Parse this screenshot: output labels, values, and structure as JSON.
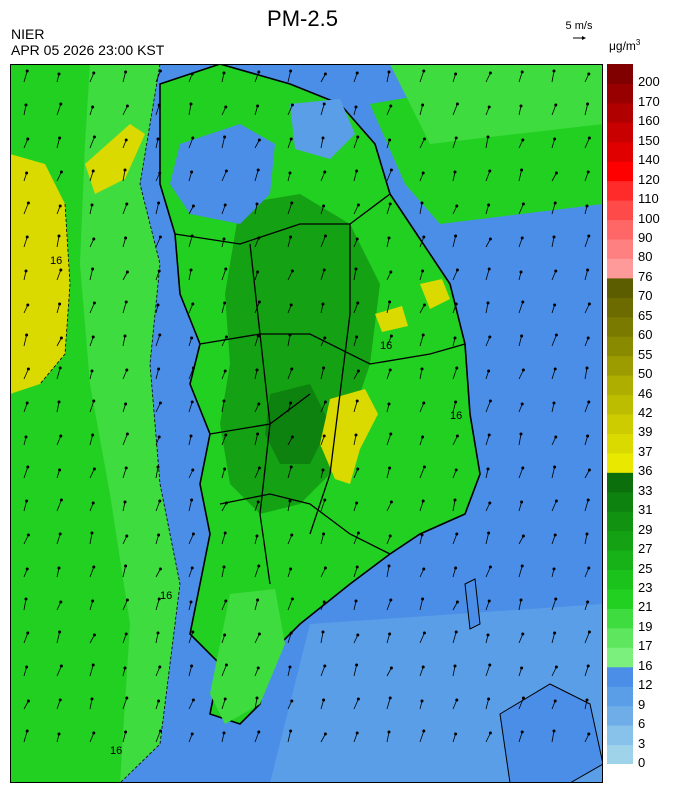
{
  "header": {
    "title": "PM-2.5",
    "org": "NIER",
    "timestamp": "APR 05 2026 23:00 KST",
    "wind_ref": "5 m/s",
    "unit": "μg/m",
    "unit_exp": "3"
  },
  "legend": {
    "levels": [
      {
        "label": "0",
        "color": "#9fd3ea"
      },
      {
        "label": "3",
        "color": "#88c1ea"
      },
      {
        "label": "6",
        "color": "#6eade8"
      },
      {
        "label": "9",
        "color": "#5b9ee8"
      },
      {
        "label": "12",
        "color": "#4a8ee8"
      },
      {
        "label": "16",
        "color": "#7cf07c"
      },
      {
        "label": "17",
        "color": "#5fe65f"
      },
      {
        "label": "19",
        "color": "#3fdc3f"
      },
      {
        "label": "21",
        "color": "#22d022"
      },
      {
        "label": "23",
        "color": "#1cc21c"
      },
      {
        "label": "25",
        "color": "#17b217"
      },
      {
        "label": "27",
        "color": "#14a214"
      },
      {
        "label": "29",
        "color": "#119211"
      },
      {
        "label": "31",
        "color": "#0e820e"
      },
      {
        "label": "33",
        "color": "#0b700b"
      },
      {
        "label": "36",
        "color": "#e8e800"
      },
      {
        "label": "37",
        "color": "#dada00"
      },
      {
        "label": "39",
        "color": "#cccc00"
      },
      {
        "label": "42",
        "color": "#bdbd00"
      },
      {
        "label": "46",
        "color": "#aeae00"
      },
      {
        "label": "50",
        "color": "#9c9c00"
      },
      {
        "label": "55",
        "color": "#8a8a00"
      },
      {
        "label": "60",
        "color": "#7a7a00"
      },
      {
        "label": "65",
        "color": "#6b6b00"
      },
      {
        "label": "70",
        "color": "#5c5c00"
      },
      {
        "label": "76",
        "color": "#ff9a9a"
      },
      {
        "label": "80",
        "color": "#ff8080"
      },
      {
        "label": "90",
        "color": "#ff6666"
      },
      {
        "label": "100",
        "color": "#ff4a4a"
      },
      {
        "label": "110",
        "color": "#ff2a2a"
      },
      {
        "label": "120",
        "color": "#ff0000"
      },
      {
        "label": "140",
        "color": "#e00000"
      },
      {
        "label": "150",
        "color": "#c80000"
      },
      {
        "label": "160",
        "color": "#b00000"
      },
      {
        "label": "170",
        "color": "#980000"
      },
      {
        "label": "200",
        "color": "#800000"
      }
    ]
  },
  "contour_labels": [
    "16",
    "16",
    "16",
    "16",
    "16"
  ]
}
